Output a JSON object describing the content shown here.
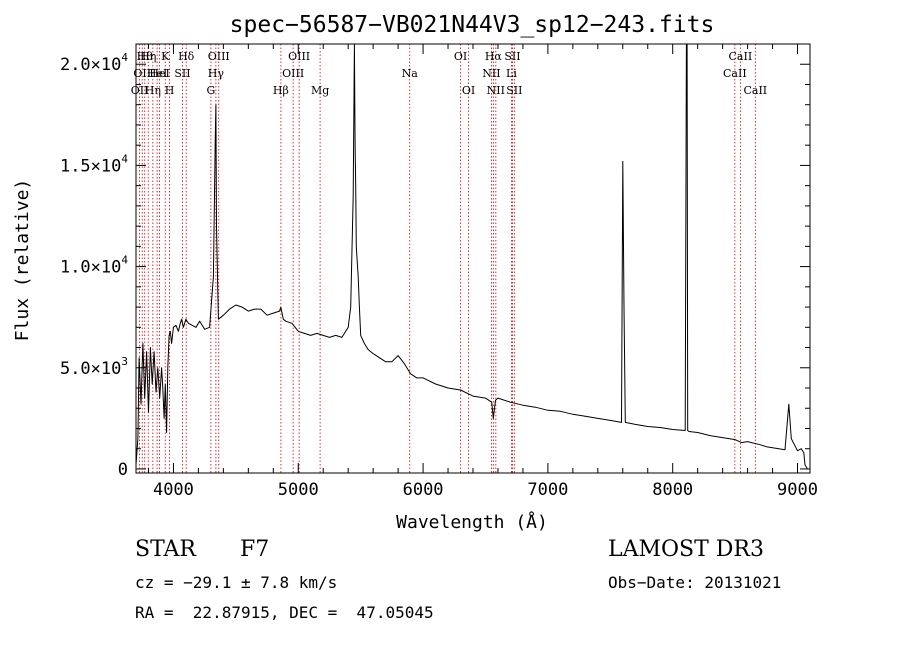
{
  "chart_data": {
    "type": "line",
    "title": "spec−56587−VB021N44V3_sp12−243.fits",
    "xlabel": "Wavelength (Å)",
    "ylabel": "Flux (relative)",
    "xlim": [
      3700,
      9100
    ],
    "ylim": [
      -200,
      21000
    ],
    "x_ticks": [
      {
        "v": 4000,
        "label": "4000"
      },
      {
        "v": 5000,
        "label": "5000"
      },
      {
        "v": 6000,
        "label": "6000"
      },
      {
        "v": 7000,
        "label": "7000"
      },
      {
        "v": 8000,
        "label": "8000"
      },
      {
        "v": 9000,
        "label": "9000"
      }
    ],
    "y_ticks": [
      {
        "v": 0,
        "mantissa": "0",
        "exp": ""
      },
      {
        "v": 5000,
        "mantissa": "5.0×10",
        "exp": "3"
      },
      {
        "v": 10000,
        "mantissa": "1.0×10",
        "exp": "4"
      },
      {
        "v": 15000,
        "mantissa": "1.5×10",
        "exp": "4"
      },
      {
        "v": 20000,
        "mantissa": "2.0×10",
        "exp": "4"
      }
    ],
    "series": [
      {
        "x": [
          3700,
          3715,
          3725,
          3740,
          3755,
          3770,
          3785,
          3800,
          3815,
          3830,
          3845,
          3860,
          3875,
          3890,
          3905,
          3915,
          3925,
          3935,
          3945,
          3955,
          3965,
          3975,
          3985,
          4000,
          4020,
          4040,
          4055,
          4065,
          4080,
          4100,
          4120,
          4150,
          4180,
          4210,
          4250,
          4290,
          4320,
          4335,
          4340,
          4345,
          4360,
          4400,
          4450,
          4500,
          4550,
          4600,
          4650,
          4700,
          4750,
          4800,
          4850,
          4860,
          4880,
          4900,
          4950,
          5000,
          5050,
          5100,
          5150,
          5200,
          5250,
          5300,
          5350,
          5400,
          5420,
          5440,
          5450,
          5455,
          5460,
          5465,
          5470,
          5480,
          5490,
          5500,
          5530,
          5560,
          5600,
          5650,
          5700,
          5750,
          5800,
          5850,
          5890,
          5900,
          5950,
          6000,
          6100,
          6200,
          6300,
          6400,
          6500,
          6550,
          6563,
          6580,
          6600,
          6700,
          6800,
          6900,
          7000,
          7100,
          7200,
          7300,
          7400,
          7500,
          7590,
          7600,
          7610,
          7620,
          7700,
          7800,
          7900,
          8000,
          8100,
          8110,
          8115,
          8120,
          8130,
          8200,
          8300,
          8400,
          8500,
          8550,
          8600,
          8700,
          8750,
          8800,
          8850,
          8900,
          8930,
          8950,
          9000,
          9030,
          9050,
          9060,
          9080
        ],
        "y": [
          200,
          1500,
          5500,
          3200,
          6200,
          3500,
          5800,
          2800,
          6000,
          4200,
          5800,
          3800,
          5000,
          3500,
          5000,
          4000,
          2500,
          4200,
          1800,
          5000,
          6600,
          6800,
          6200,
          7000,
          7100,
          6800,
          7200,
          7400,
          7000,
          7400,
          7200,
          7100,
          7000,
          7300,
          6900,
          7000,
          9500,
          16500,
          18000,
          12000,
          7400,
          7600,
          7900,
          8100,
          8000,
          7800,
          7900,
          7900,
          7600,
          7700,
          7800,
          8000,
          7400,
          7300,
          7200,
          6800,
          6700,
          6600,
          6700,
          6600,
          6500,
          6600,
          6500,
          7000,
          8000,
          13500,
          21000,
          16000,
          14000,
          11000,
          10500,
          9500,
          8000,
          6600,
          6200,
          5900,
          5700,
          5500,
          5300,
          5300,
          5600,
          5200,
          4800,
          4700,
          4500,
          4500,
          4200,
          4000,
          3900,
          3600,
          3500,
          3300,
          2500,
          3400,
          3500,
          3300,
          3150,
          3050,
          2900,
          2850,
          2700,
          2600,
          2500,
          2400,
          2300,
          15200,
          8000,
          2300,
          2200,
          2100,
          2050,
          1950,
          1900,
          21000,
          21000,
          1900,
          1850,
          1800,
          1650,
          1550,
          1450,
          1300,
          1350,
          1200,
          1100,
          1050,
          1000,
          950,
          3200,
          1500,
          900,
          1000,
          800,
          200,
          0
        ]
      }
    ],
    "line_markers": [
      {
        "w": 3729,
        "label": "OII",
        "row": 2
      },
      {
        "w": 3750,
        "label": "OII",
        "row": 1
      },
      {
        "w": 3770,
        "label": "Hθ",
        "row": 0
      },
      {
        "w": 3798,
        "label": "Hη",
        "row": 0
      },
      {
        "w": 3835,
        "label": "Hη",
        "row": 2
      },
      {
        "w": 3869,
        "label": "HeI",
        "row": 1
      },
      {
        "w": 3889,
        "label": "HeI",
        "row": 1
      },
      {
        "w": 3934,
        "label": "K",
        "row": 0
      },
      {
        "w": 3969,
        "label": "H",
        "row": 2
      },
      {
        "w": 4072,
        "label": "SII",
        "row": 1
      },
      {
        "w": 4102,
        "label": "Hδ",
        "row": 0
      },
      {
        "w": 4300,
        "label": "G",
        "row": 2
      },
      {
        "w": 4340,
        "label": "Hγ",
        "row": 1
      },
      {
        "w": 4363,
        "label": "OIII",
        "row": 0
      },
      {
        "w": 4861,
        "label": "Hβ",
        "row": 2
      },
      {
        "w": 4959,
        "label": "OIII",
        "row": 1
      },
      {
        "w": 5007,
        "label": "OIII",
        "row": 0
      },
      {
        "w": 5175,
        "label": "Mg",
        "row": 2
      },
      {
        "w": 5893,
        "label": "Na",
        "row": 1
      },
      {
        "w": 6300,
        "label": "OI",
        "row": 0
      },
      {
        "w": 6364,
        "label": "OI",
        "row": 2
      },
      {
        "w": 6548,
        "label": "NII",
        "row": 1
      },
      {
        "w": 6563,
        "label": "Hα",
        "row": 0
      },
      {
        "w": 6583,
        "label": "NII",
        "row": 2
      },
      {
        "w": 6708,
        "label": "Li",
        "row": 1
      },
      {
        "w": 6716,
        "label": "SII",
        "row": 0
      },
      {
        "w": 6731,
        "label": "SII",
        "row": 2
      },
      {
        "w": 8498,
        "label": "CaII",
        "row": 1
      },
      {
        "w": 8542,
        "label": "CaII",
        "row": 0
      },
      {
        "w": 8662,
        "label": "CaII",
        "row": 2
      }
    ]
  },
  "info": {
    "object_class": "STAR",
    "subclass": "F7",
    "survey": "LAMOST DR3",
    "redshift": "cz = −29.1 ± 7.8 km/s",
    "obs_date": "Obs−Date: 20131021",
    "coordinates": "RA =  22.87915, DEC =  47.05045"
  },
  "colors": {
    "spectrum": "#000000",
    "line_markers": "#cc0000",
    "axes": "#000000",
    "background": "#ffffff"
  }
}
